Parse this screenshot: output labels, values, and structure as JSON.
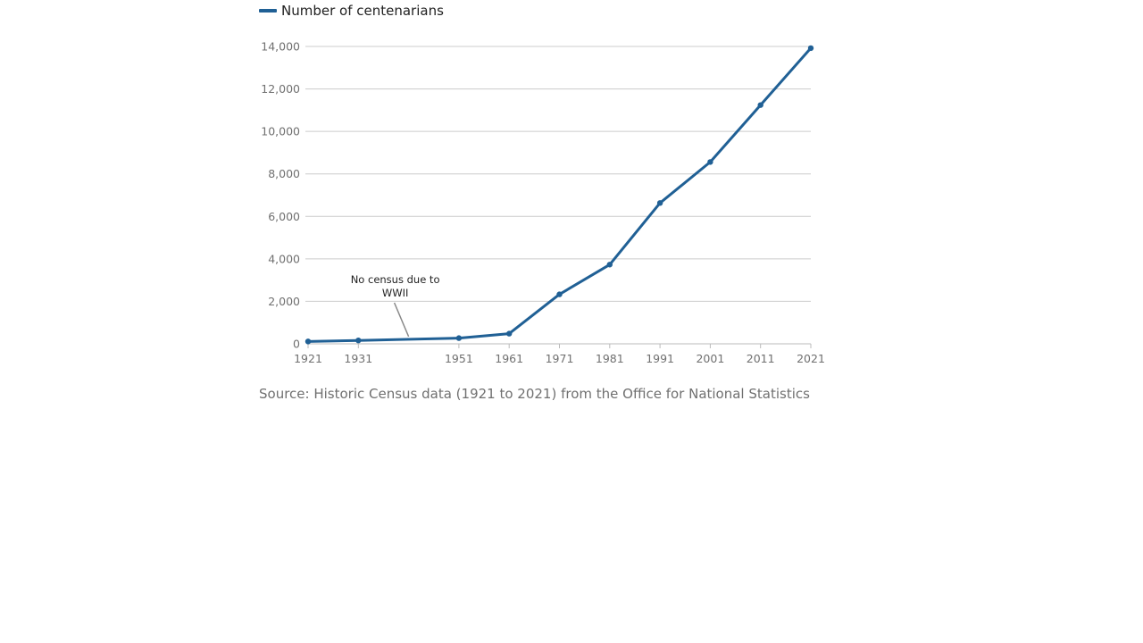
{
  "chart_data": {
    "type": "line",
    "x": [
      1921,
      1931,
      1951,
      1961,
      1971,
      1981,
      1991,
      2001,
      2011,
      2021
    ],
    "series": [
      {
        "name": "Number of centenarians",
        "values": [
          110,
          160,
          270,
          480,
          2330,
          3730,
          6630,
          8560,
          11240,
          13920
        ],
        "color": "#206095"
      }
    ],
    "x_ticks": [
      "1921",
      "1931",
      "1951",
      "1961",
      "1971",
      "1981",
      "1991",
      "2001",
      "2011",
      "2021"
    ],
    "y_ticks": [
      "0",
      "2,000",
      "4,000",
      "6,000",
      "8,000",
      "10,000",
      "12,000",
      "14,000"
    ],
    "y_tick_values": [
      0,
      2000,
      4000,
      6000,
      8000,
      10000,
      12000,
      14000
    ],
    "xlim": [
      1921,
      2021
    ],
    "ylim": [
      0,
      14000
    ],
    "grid": "horizontal",
    "legend_position": "top-left",
    "annotation": {
      "lines": [
        "No census due to",
        "WWII"
      ],
      "x": 1941
    },
    "title": "",
    "xlabel": "",
    "ylabel": ""
  },
  "legend": {
    "label": "Number of centenarians"
  },
  "source": "Source: Historic Census data (1921 to 2021) from the Office for National Statistics",
  "colors": {
    "series": "#206095",
    "grid": "#cccccc",
    "axis_text": "#707070",
    "annotation_line": "#888888"
  }
}
